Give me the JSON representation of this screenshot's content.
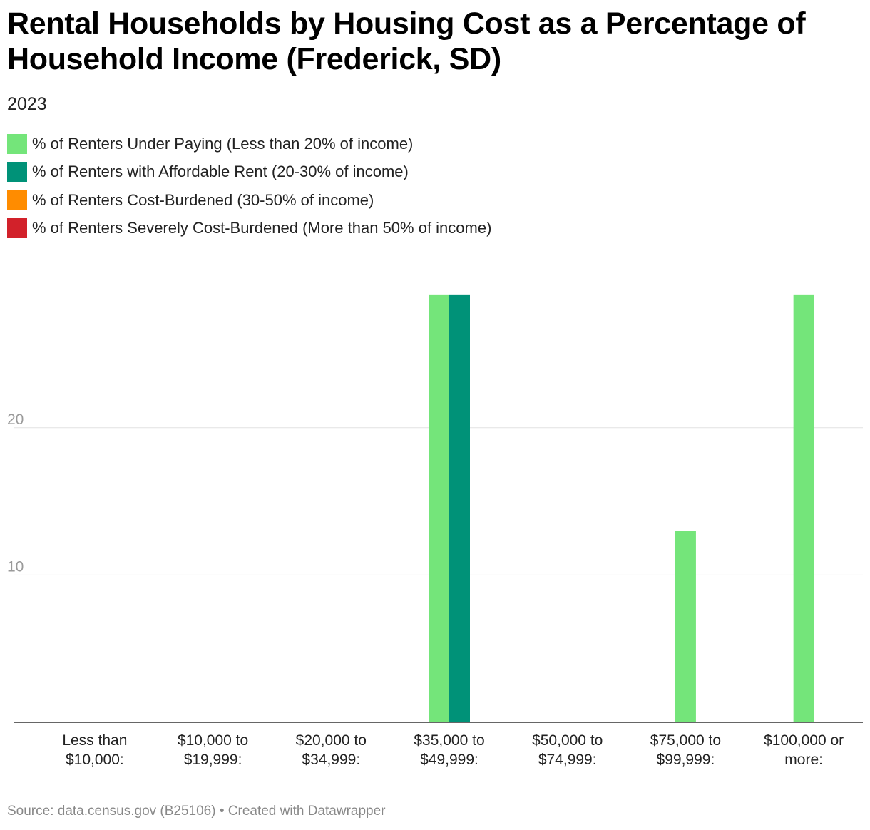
{
  "title": "Rental Households by Housing Cost as a Percentage of Household Income (Frederick, SD)",
  "subtitle": "2023",
  "footer": {
    "source": "Source: data.census.gov (B25106) • Created with Datawrapper"
  },
  "chart_data": {
    "type": "bar",
    "title": "Rental Households by Housing Cost as a Percentage of Household Income (Frederick, SD)",
    "subtitle": "2023",
    "xlabel": "",
    "ylabel": "",
    "ylim": [
      0,
      29
    ],
    "yticks": [
      10,
      20
    ],
    "grid": true,
    "legend_position": "top-left",
    "categories": [
      [
        "Less than",
        "$10,000:"
      ],
      [
        "$10,000 to",
        "$19,999:"
      ],
      [
        "$20,000 to",
        "$34,999:"
      ],
      [
        "$35,000 to",
        "$49,999:"
      ],
      [
        "$50,000 to",
        "$74,999:"
      ],
      [
        "$75,000 to",
        "$99,999:"
      ],
      [
        "$100,000 or",
        "more:"
      ]
    ],
    "series": [
      {
        "name": "% of Renters Under Paying (Less than 20% of income)",
        "color": "#74e57a",
        "values": [
          0,
          0,
          0,
          29,
          0,
          13,
          29
        ]
      },
      {
        "name": "% of Renters with Affordable Rent (20-30% of income)",
        "color": "#009278",
        "values": [
          0,
          0,
          0,
          29,
          0,
          0,
          0
        ]
      },
      {
        "name": "% of Renters Cost-Burdened (30-50% of income)",
        "color": "#ff8c00",
        "values": [
          0,
          0,
          0,
          0,
          0,
          0,
          0
        ]
      },
      {
        "name": "% of Renters Severely Cost-Burdened (More than 50% of income)",
        "color": "#d2212a",
        "values": [
          0,
          0,
          0,
          0,
          0,
          0,
          0
        ]
      }
    ]
  }
}
